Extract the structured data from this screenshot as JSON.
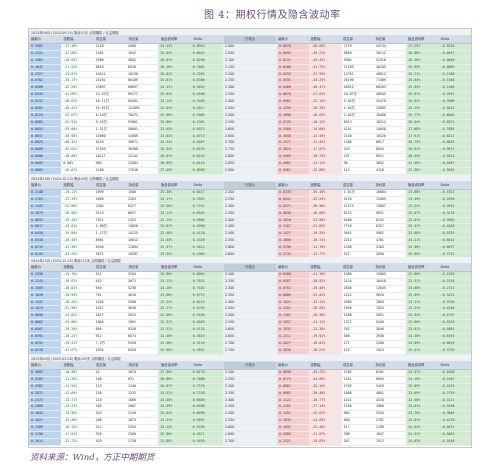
{
  "title": "图 4：期权行情及隐含波动率",
  "source": "资料来源：Wind，方正中期期货",
  "columns_left": [
    "最新价",
    "涨跌幅",
    "成交量",
    "持仓量",
    "隐含波动率",
    "Delta"
  ],
  "columns_right": [
    "最新价",
    "涨跌幅",
    "成交量",
    "持仓量",
    "隐含波动率",
    "Delta"
  ],
  "middle_header": "行权价",
  "sections": [
    {
      "banner": "2024年09月 (2024-09-25) 剩余21天 认购期权 / 认沽期权",
      "rows": [
        [
          "0.2681",
          "-17.30%",
          "2128",
          "4560",
          "34.14%",
          "0.8943",
          "2.000",
          "0.0070",
          "-50.00%",
          "7179",
          "44744",
          "27.25%",
          "-0.0316"
        ],
        [
          "0.2321",
          "-17.89%",
          "1481",
          "1042",
          "32.65%",
          "0.8642",
          "2.050",
          "0.0095",
          "-49.21%",
          "6850",
          "38112",
          "26.88%",
          "-0.0457"
        ],
        [
          "0.1961",
          "-20.92%",
          "2986",
          "4802",
          "30.01%",
          "0.8250",
          "2.100",
          "0.0131",
          "-45.42%",
          "9304",
          "52410",
          "26.40%",
          "-0.0640"
        ],
        [
          "0.1642",
          "-21.52%",
          "6818",
          "6016",
          "28.16%",
          "0.7801",
          "2.150",
          "0.0186",
          "-41.72%",
          "11203",
          "40285",
          "25.93%",
          "-0.0889"
        ],
        [
          "0.1327",
          "-23.07%",
          "10512",
          "10138",
          "26.82%",
          "0.7261",
          "2.200",
          "0.0253",
          "-37.93%",
          "12781",
          "46812",
          "25.71%",
          "-0.1208"
        ],
        [
          "0.0782",
          "-35.17%",
          "25261",
          "60189",
          "25.01%",
          "0.6300",
          "2.250",
          "0.0331",
          "-34.25%",
          "26190",
          "71409",
          "25.64%",
          "-0.1588"
        ],
        [
          "0.0568",
          "-42.20%",
          "43097",
          "68697",
          "24.12%",
          "0.5642",
          "2.300",
          "0.0468",
          "-30.47%",
          "48912",
          "60283",
          "25.33%",
          "-0.2166"
        ],
        [
          "0.0344",
          "-41.89%",
          "13.42万",
          "99177",
          "23.64%",
          "0.4508",
          "2.350",
          "0.0678",
          "-27.01%",
          "10.87万",
          "48945",
          "25.07%",
          "-0.2931"
        ],
        [
          "0.0237",
          "-46.61%",
          "16.11万",
          "84581",
          "23.14%",
          "0.3489",
          "2.400",
          "0.0981",
          "-22.14%",
          "9.84万",
          "32478",
          "24.92%",
          "-0.3986"
        ],
        [
          "0.0202",
          "-46.42%",
          "15.61万",
          "122091",
          "22.84%",
          "0.2617",
          "2.450",
          "0.1299",
          "-20.33%",
          "4.84万",
          "23895",
          "25.22%",
          "-0.5012"
        ],
        [
          "0.0124",
          "-52.67%",
          "8.14万",
          "70471",
          "22.96%",
          "0.1885",
          "2.500",
          "0.1690",
          "-18.63%",
          "2.64万",
          "18460",
          "25.77%",
          "-0.6040"
        ],
        [
          "0.0081",
          "-52.91%",
          "3.45万",
          "91801",
          "23.08%",
          "0.1381",
          "2.550",
          "0.2133",
          "-16.12%",
          "8913",
          "16212",
          "26.44%",
          "-0.6971"
        ],
        [
          "0.0054",
          "-55.00%",
          "2.31万",
          "58601",
          "23.45%",
          "0.0972",
          "2.600",
          "0.2560",
          "-14.60%",
          "4251",
          "14058",
          "27.08%",
          "-0.7685"
        ],
        [
          "0.0037",
          "-56.98%",
          "15860",
          "41689",
          "23.82%",
          "0.0715",
          "2.650",
          "0.3056",
          "-12.49%",
          "2140",
          "10326",
          "27.91%",
          "-0.8221"
        ],
        [
          "0.0025",
          "-60.32%",
          "9216",
          "30671",
          "24.24%",
          "0.0487",
          "2.700",
          "0.3477",
          "-11.45%",
          "1286",
          "8817",
          "28.79%",
          "-0.8635"
        ],
        [
          "0.0009",
          "-35.83%",
          "37349",
          "38368",
          "25.34%",
          "0.0193",
          "2.750",
          "0.3924",
          "-17.87%",
          "243",
          "8034",
          "29.51%",
          "-0.9071"
        ],
        [
          "0.0006",
          "-40.00%",
          "16117",
          "32141",
          "26.01%",
          "0.0154",
          "2.800",
          "0.4409",
          "-16.73%",
          "197",
          "6911",
          "30.44%",
          "-0.9323"
        ],
        [
          "0.0005",
          "0.00%",
          "905",
          "24384",
          "26.95%",
          "0.0118",
          "2.850",
          "0.4981",
          "-14.11%",
          "96",
          "3852",
          "31.48%",
          "-0.9487"
        ],
        [
          "0.0005",
          "-16.67%",
          "1180",
          "17616",
          "27.49%",
          "0.0099",
          "2.900",
          "0.5461",
          "-12.09%",
          "112",
          "4128",
          "32.38%",
          "-0.9595"
        ],
        [
          "0.0003",
          "0.00%",
          "758",
          "14023",
          "28.07%",
          "0.0067",
          "2.950",
          "0.5924",
          "-8.23%",
          "61",
          "1764",
          "33.54%",
          "-0.9702"
        ]
      ]
    },
    {
      "banner": "2024年10月 (2024-10-23) 剩余49天 认购期权 / 认沽期权",
      "rows": [
        [
          "0.2148",
          "-19.11%",
          "1699",
          "1588",
          "25.38%",
          "0.8417",
          "2.200",
          "0.0339",
          "-35.45%",
          "1.01万",
          "16884",
          "23.88%",
          "-0.1522"
        ],
        [
          "0.1763",
          "-21.39%",
          "1668",
          "2283",
          "24.17%",
          "0.7852",
          "2.250",
          "0.0441",
          "-33.23%",
          "9126",
          "13409",
          "23.49%",
          "-0.2050"
        ],
        [
          "0.1443",
          "-22.66%",
          "2304",
          "6227",
          "23.56%",
          "0.7221",
          "2.300",
          "0.0571",
          "-30.56%",
          "11273",
          "13807",
          "23.22%",
          "-0.2631"
        ],
        [
          "0.1079",
          "-26.90%",
          "5213",
          "6037",
          "23.11%",
          "0.6544",
          "2.350",
          "0.0838",
          "-26.80%",
          "8223",
          "9831",
          "23.07%",
          "-0.3278"
        ],
        [
          "0.0831",
          "-29.45%",
          "7011",
          "7422",
          "22.73%",
          "0.5804",
          "2.400",
          "0.1016",
          "-23.90%",
          "6480",
          "8125",
          "23.01%",
          "-0.3962"
        ],
        [
          "0.0617",
          "-34.01%",
          "1.06万",
          "13658",
          "22.61%",
          "0.4990",
          "2.450",
          "0.1167",
          "-21.65%",
          "7718",
          "6327",
          "23.41%",
          "-0.4628"
        ],
        [
          "0.0450",
          "-34.88%",
          "1.17万",
          "14225",
          "22.48%",
          "0.4128",
          "2.500",
          "0.1527",
          "-19.55%",
          "3641",
          "5962",
          "23.88%",
          "-0.5335"
        ],
        [
          "0.0316",
          "-38.40%",
          "8901",
          "16012",
          "22.53%",
          "0.3328",
          "2.550",
          "0.1880",
          "-16.74%",
          "2215",
          "4781",
          "24.21%",
          "-0.6012"
        ],
        [
          "0.0215",
          "-41.30%",
          "6340",
          "11894",
          "22.97%",
          "0.2612",
          "2.600",
          "0.2296",
          "-14.76%",
          "1108",
          "3105",
          "24.98%",
          "-0.6637"
        ],
        [
          "0.0144",
          "-43.53%",
          "3871",
          "10287",
          "23.35%",
          "0.1963",
          "2.650",
          "0.2733",
          "-12.77%",
          "521",
          "2690",
          "25.69%",
          "-0.7212"
        ],
        [
          "0.0096",
          "-47.25%",
          "2955",
          "9840",
          "23.91%",
          "0.1391",
          "2.700",
          "0.3170",
          "-10.68%",
          "402",
          "1874",
          "26.33%",
          "-0.7709"
        ]
      ]
    },
    {
      "banner": "2024年12月 (2024-12-25) 剩余112天 认购期权 / 认沽期权",
      "rows": [
        [
          "0.2590",
          "-15.76%",
          "511",
          "3294",
          "25.96%",
          "0.8064",
          "2.200",
          "0.0488",
          "-41.18%",
          "1980",
          "15803",
          "23.60%",
          "-0.1930"
        ],
        [
          "0.2244",
          "-16.83%",
          "442",
          "3071",
          "25.12%",
          "0.7631",
          "2.250",
          "0.0587",
          "-38.92%",
          "2124",
          "10418",
          "23.31%",
          "-0.2326"
        ],
        [
          "0.1909",
          "-18.02%",
          "650",
          "5236",
          "24.26%",
          "0.7182",
          "2.300",
          "0.0702",
          "-36.46%",
          "2836",
          "12045",
          "23.08%",
          "-0.2752"
        ],
        [
          "0.1620",
          "-18.94%",
          "761",
          "4618",
          "23.68%",
          "0.6713",
          "2.350",
          "0.0880",
          "-34.02%",
          "2412",
          "9620",
          "23.05%",
          "-0.3223"
        ],
        [
          "0.1347",
          "-20.45%",
          "1204",
          "5580",
          "23.22%",
          "0.6215",
          "2.400",
          "0.1021",
          "-31.11%",
          "2680",
          "7884",
          "23.11%",
          "-0.3730"
        ],
        [
          "0.1074",
          "-22.90%",
          "1417",
          "5640",
          "22.77%",
          "0.5703",
          "2.450",
          "0.1201",
          "-28.50%",
          "1940",
          "7025",
          "23.21%",
          "-0.4264"
        ],
        [
          "0.0856",
          "-24.02%",
          "1627",
          "5915",
          "22.56%",
          "0.5185",
          "2.500",
          "0.1382",
          "-26.38%",
          "1588",
          "5831",
          "23.34%",
          "-0.4797"
        ],
        [
          "0.0662",
          "-25.06%",
          "1064",
          "7061",
          "22.31%",
          "0.4655",
          "2.550",
          "0.1657",
          "-24.11%",
          "1372",
          "5440",
          "23.60%",
          "-0.5324"
        ],
        [
          "0.0507",
          "-26.16%",
          "856",
          "9228",
          "22.21%",
          "0.4125",
          "2.600",
          "0.1932",
          "-22.36%",
          "762",
          "3846",
          "23.91%",
          "-0.5861"
        ],
        [
          "0.0391",
          "-28.22%",
          "912",
          "6074",
          "22.46%",
          "0.3615",
          "2.650",
          "0.2211",
          "-19.92%",
          "508",
          "2930",
          "24.30%",
          "-0.6353"
        ],
        [
          "0.0291",
          "-29.41%",
          "7.2万",
          "9458",
          "22.56%",
          "0.3116",
          "2.700",
          "0.2627",
          "-18.01%",
          "271",
          "2288",
          "24.89%",
          "-0.6819"
        ],
        [
          "0.0218",
          "-31.67%",
          "1034",
          "8920",
          "22.98%",
          "0.2651",
          "2.750",
          "0.3036",
          "-16.21%",
          "174",
          "1924",
          "25.41%",
          "-0.7239"
        ],
        [
          "0.0168",
          "-32.79%",
          "2028",
          "8452",
          "23.40%",
          "0.2232",
          "2.800",
          "0.3482",
          "-14.02%",
          "146",
          "1317",
          "26.12%",
          "-0.7629"
        ],
        [
          "0.0124",
          "-34.47%",
          "1562",
          "10428",
          "23.91%",
          "0.1856",
          "2.850",
          "0.3935",
          "-12.69%",
          "93",
          "955",
          "26.84%",
          "-0.7964"
        ]
      ]
    },
    {
      "banner": "2025年03月 (2025-03-26) 剩余203天 认购期权 / 认沽期权",
      "rows": [
        [
          "0.3602",
          "-10.98%",
          "42",
          "1074",
          "27.90%",
          "0.8176",
          "2.200",
          "0.0690",
          "-35.72%",
          "1282",
          "8101",
          "24.37%",
          "-0.1808"
        ],
        [
          "0.3285",
          "-11.35%",
          "106",
          "631",
          "26.86%",
          "0.7888",
          "2.250",
          "0.0774",
          "-34.09%",
          "1451",
          "6094",
          "24.10%",
          "-0.2107"
        ],
        [
          "0.2981",
          "-11.94%",
          "113",
          "1346",
          "26.07%",
          "0.7570",
          "2.300",
          "0.0861",
          "-32.14%",
          "1705",
          "5426",
          "23.85%",
          "-0.2423"
        ],
        [
          "0.2671",
          "-12.66%",
          "158",
          "1232",
          "25.22%",
          "0.7230",
          "2.350",
          "0.0981",
          "-30.48%",
          "1608",
          "4802",
          "23.69%",
          "-0.2759"
        ],
        [
          "0.2372",
          "-13.71%",
          "218",
          "1866",
          "24.58%",
          "0.6869",
          "2.400",
          "0.1122",
          "-28.77%",
          "1411",
          "4218",
          "23.58%",
          "-0.3121"
        ],
        [
          "0.2089",
          "-14.23%",
          "305",
          "2007",
          "23.99%",
          "0.6488",
          "2.450",
          "0.1282",
          "-27.14%",
          "1160",
          "3960",
          "23.61%",
          "-0.3498"
        ],
        [
          "0.1843",
          "-14.98%",
          "324",
          "2140",
          "23.64%",
          "0.6098",
          "2.500",
          "0.1451",
          "-25.61%",
          "884",
          "3345",
          "23.70%",
          "-0.3884"
        ],
        [
          "0.1621",
          "-15.56%",
          "288",
          "1875",
          "23.41%",
          "0.5697",
          "2.550",
          "0.1633",
          "-24.03%",
          "660",
          "2762",
          "23.81%",
          "-0.4276"
        ],
        [
          "0.1389",
          "-16.33%",
          "412",
          "2294",
          "23.12%",
          "0.5285",
          "2.600",
          "0.1852",
          "-22.48%",
          "517",
          "2190",
          "24.04%",
          "-0.4671"
        ],
        [
          "0.1190",
          "-17.01%",
          "376",
          "2506",
          "22.96%",
          "0.4871",
          "2.650",
          "0.2080",
          "-21.07%",
          "398",
          "1847",
          "24.31%",
          "-0.5063"
        ],
        [
          "0.1014",
          "-17.72%",
          "429",
          "2738",
          "22.88%",
          "0.4459",
          "2.700",
          "0.2321",
          "-19.83%",
          "267",
          "1512",
          "24.63%",
          "-0.5448"
        ]
      ]
    }
  ]
}
